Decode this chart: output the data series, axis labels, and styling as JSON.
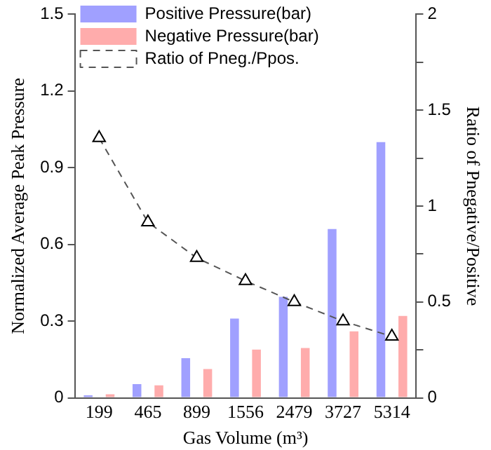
{
  "chart_data": {
    "type": "bar",
    "categories": [
      "199",
      "465",
      "899",
      "1556",
      "2479",
      "3727",
      "5314"
    ],
    "xlabel": "Gas Volume (m³)",
    "ylabel": "Normalized Average Peak Pressure",
    "y2label": "Ratio of Pnegative/Positive",
    "series": [
      {
        "name": "Positive Pressure(bar)",
        "color": "#8080ff",
        "values": [
          0.01,
          0.054,
          0.155,
          0.31,
          0.395,
          0.66,
          1.0
        ]
      },
      {
        "name": "Negative Pressure(bar)",
        "color": "#ff9090",
        "values": [
          0.014,
          0.049,
          0.113,
          0.189,
          0.195,
          0.26,
          0.32
        ]
      },
      {
        "name": "Ratio of Pneg./Ppos.",
        "type": "line",
        "axis": "y2",
        "color": "#555555",
        "line_style": "dashed",
        "marker": "triangle",
        "values": [
          1.355,
          0.916,
          0.73,
          0.61,
          0.5,
          0.4,
          0.32
        ]
      }
    ],
    "ylim": [
      0,
      1.5
    ],
    "yticks": [
      0,
      0.3,
      0.6,
      0.9,
      1.2,
      1.5
    ],
    "y2lim": [
      0,
      2
    ],
    "y2ticks": [
      0,
      {
        "value": 0.25,
        "label": null
      },
      0.5,
      {
        "value": 0.75,
        "label": null
      },
      1,
      {
        "value": 1.25,
        "label": null
      },
      1.5,
      {
        "value": 1.75,
        "label": null
      },
      2
    ],
    "grid": false,
    "legend": "top left"
  }
}
